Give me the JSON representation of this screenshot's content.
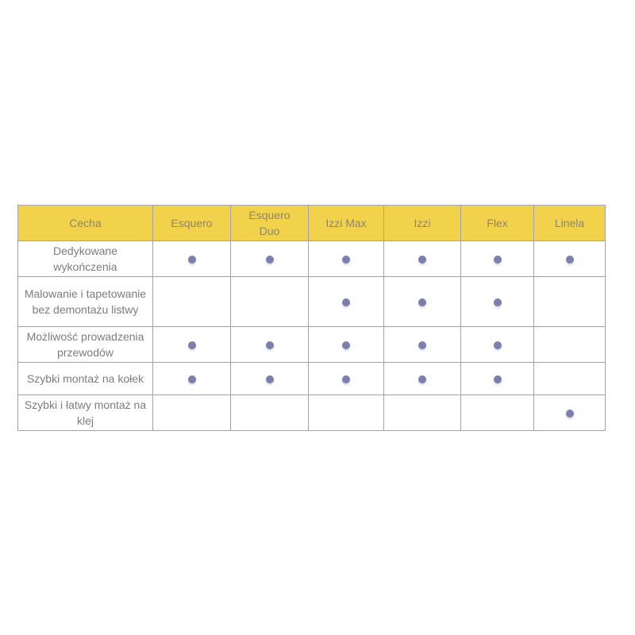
{
  "chart_data": {
    "type": "table",
    "columns": [
      "Cecha",
      "Esquero",
      "Esquero Duo",
      "Izzi Max",
      "Izzi",
      "Flex",
      "Linela"
    ],
    "rows": [
      {
        "label": "Dedykowane wykończenia",
        "values": [
          true,
          true,
          true,
          true,
          true,
          true
        ]
      },
      {
        "label": "Malowanie i tapetowanie bez demontażu listwy",
        "values": [
          false,
          false,
          true,
          true,
          true,
          false
        ]
      },
      {
        "label": "Możliwość prowadzenia przewodów",
        "values": [
          true,
          true,
          true,
          true,
          true,
          false
        ]
      },
      {
        "label": "Szybki montaż na kołek",
        "values": [
          true,
          true,
          true,
          true,
          true,
          false
        ]
      },
      {
        "label": "Szybki i łatwy montaż na klej",
        "values": [
          false,
          false,
          false,
          false,
          false,
          true
        ]
      }
    ]
  },
  "colors": {
    "header_background": "#f2d24b",
    "header_text": "#8b8574",
    "body_text": "#7d7d7d",
    "border": "#a3a3a3",
    "dot": "#7c7ead"
  }
}
